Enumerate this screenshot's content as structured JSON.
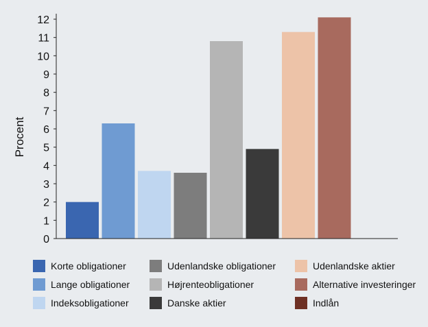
{
  "chart_data": {
    "type": "bar",
    "title": "",
    "xlabel": "",
    "ylabel": "Procent",
    "ylim": [
      0,
      12
    ],
    "yticks": [
      "0",
      "1",
      "2",
      "3",
      "4",
      "5",
      "6",
      "7",
      "8",
      "9",
      "10",
      "11",
      "12"
    ],
    "grid": false,
    "legend_placement": "bottom",
    "categories": [
      "Korte obligationer",
      "Lange obligationer",
      "Indeksobligationer",
      "Udenlandske obligationer",
      "Højrenteobligationer",
      "Danske aktier",
      "Udenlandske aktier",
      "Alternative investeringer",
      "Indlån"
    ],
    "values": [
      2.0,
      6.3,
      3.7,
      3.6,
      10.8,
      4.9,
      11.3,
      12.1,
      0
    ],
    "colors": [
      "#3a66b0",
      "#6f9bd2",
      "#bfd6f0",
      "#7d7d7d",
      "#b5b5b5",
      "#3a3a3a",
      "#edc3a8",
      "#a86a5e",
      "#6e3024"
    ]
  }
}
